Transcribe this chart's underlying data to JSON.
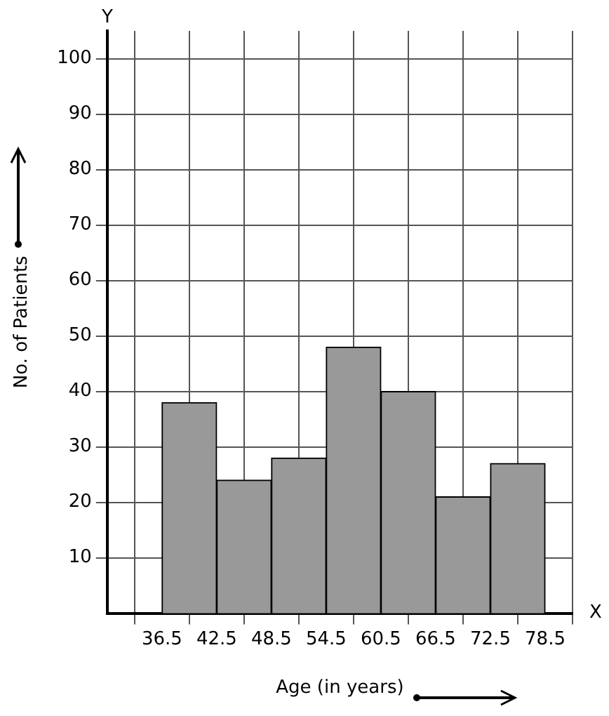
{
  "chart_data": {
    "type": "histogram",
    "xlabel": "Age (in years)",
    "ylabel": "No. of Patients",
    "bins": [
      36.5,
      42.5,
      48.5,
      54.5,
      60.5,
      66.5,
      72.5,
      78.5
    ],
    "values": [
      38,
      24,
      28,
      48,
      40,
      21,
      27
    ],
    "color": "#999999",
    "xlim": [
      30.5,
      81.5
    ],
    "xticks": [
      36.5,
      42.5,
      48.5,
      54.5,
      60.5,
      66.5,
      72.5,
      78.5
    ],
    "ylim": [
      0,
      105
    ],
    "yticks": [
      10,
      20,
      30,
      40,
      50,
      60,
      70,
      80,
      90,
      100
    ],
    "annotations": [
      "Y",
      "X"
    ],
    "grid": true,
    "legend": false
  }
}
